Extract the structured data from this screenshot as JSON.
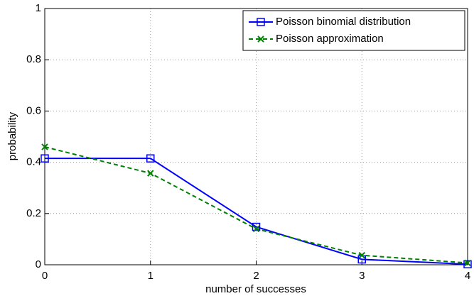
{
  "chart_data": {
    "type": "line",
    "x_label": "number of successes",
    "y_label": "probability",
    "x": [
      0,
      1,
      2,
      3,
      4
    ],
    "series": [
      {
        "name": "Poisson binomial distribution",
        "color": "#0000ff",
        "marker": "square",
        "linestyle": "solid",
        "values": [
          0.415,
          0.415,
          0.148,
          0.021,
          0.002
        ]
      },
      {
        "name": "Poisson approximation",
        "color": "#008000",
        "marker": "x",
        "linestyle": "dashed",
        "values": [
          0.46,
          0.357,
          0.14,
          0.037,
          0.007
        ]
      }
    ],
    "xlim": [
      0,
      4
    ],
    "xticks": [
      0,
      1,
      2,
      3,
      4
    ],
    "ylim": [
      0,
      1
    ],
    "yticks": [
      0,
      0.2,
      0.4,
      0.6,
      0.8,
      1
    ],
    "grid": true,
    "legend": "top-right"
  }
}
